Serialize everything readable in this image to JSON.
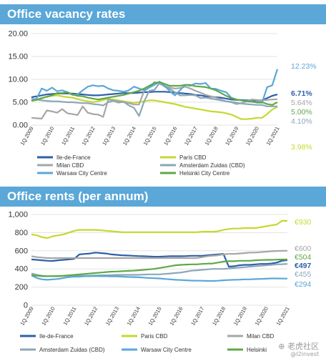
{
  "titles": {
    "vacancy": "Office vacancy rates",
    "rents": "Office rents (per annum)"
  },
  "watermark": {
    "main": "⊕ 老虎社区",
    "sub": "@I2invest"
  },
  "colors": {
    "banner": "#5aa7d8",
    "Ile-de-France": "#2f5fa9",
    "Paris CBD": "#c6d82f",
    "Milan CBD": "#a6a6a6",
    "Amsterdam Zuidas (CBD)": "#8ca7b9",
    "Warsaw City Centre": "#5aa7d8",
    "Helsinki City Centre": "#5fa847",
    "Helsinki": "#5fa847"
  },
  "chart_data": [
    {
      "type": "line",
      "title": "Office vacancy rates",
      "x": [
        "1Q.2009",
        "2Q.2009",
        "3Q.2009",
        "4Q.2009",
        "1Q.2010",
        "2Q.2010",
        "3Q.2010",
        "4Q.2010",
        "1Q.2011",
        "2Q.2011",
        "3Q.2011",
        "4Q.2011",
        "1Q.2012",
        "2Q.2012",
        "3Q.2012",
        "4Q.2012",
        "1Q.2013",
        "2Q.2013",
        "3Q.2013",
        "4Q.2013",
        "1Q.2014",
        "2Q.2014",
        "3Q.2014",
        "4Q.2014",
        "1Q.2015",
        "2Q.2015",
        "3Q.2015",
        "4Q.2015",
        "1Q.2016",
        "2Q.2016",
        "3Q.2016",
        "4Q.2016",
        "1Q.2017",
        "2Q.2017",
        "3Q.2017",
        "4Q.2017",
        "1Q.2018",
        "2Q.2018",
        "3Q.2018",
        "4Q.2018",
        "1Q.2019",
        "2Q.2019",
        "3Q.2019",
        "4Q.2019",
        "1Q.2020",
        "2Q.2020",
        "3Q.2020",
        "4Q.2020",
        "1Q.2021"
      ],
      "x_tick_labels": [
        "1Q.2009",
        "1Q.2010",
        "1Q.2011",
        "1Q.2012",
        "1Q.2013",
        "1Q.2014",
        "1Q.2015",
        "1Q.2016",
        "1Q.2017",
        "1Q.2018",
        "1Q.2019",
        "1Q.2020",
        "1Q.2021"
      ],
      "y_ticks": [
        "0.00",
        "5.00",
        "10.00",
        "15.00",
        "20.00"
      ],
      "ylim": [
        0,
        20
      ],
      "grid": true,
      "legend_position": "bottom",
      "series": [
        {
          "name": "Ile-de-France",
          "values": [
            6.1,
            6.3,
            6.5,
            6.7,
            6.8,
            6.9,
            6.9,
            6.9,
            6.9,
            6.8,
            6.7,
            6.6,
            6.5,
            6.5,
            6.6,
            6.7,
            6.8,
            6.9,
            7.0,
            7.0,
            7.0,
            7.1,
            7.2,
            7.2,
            7.3,
            7.3,
            7.3,
            7.2,
            7.1,
            7.0,
            6.9,
            6.8,
            6.6,
            6.5,
            6.3,
            6.2,
            6.1,
            6.0,
            5.8,
            5.6,
            5.5,
            5.5,
            5.4,
            5.4,
            5.4,
            5.4,
            5.9,
            6.4,
            6.71
          ],
          "end_label": "6.71%"
        },
        {
          "name": "Paris CBD",
          "values": [
            5.6,
            5.5,
            5.8,
            6.2,
            6.4,
            6.5,
            6.3,
            6.1,
            6.0,
            5.7,
            5.4,
            5.2,
            5.0,
            5.2,
            5.5,
            5.7,
            5.6,
            5.4,
            5.2,
            5.0,
            4.9,
            5.0,
            5.2,
            5.4,
            5.4,
            5.2,
            5.0,
            4.8,
            4.6,
            4.3,
            4.0,
            3.8,
            3.6,
            3.4,
            3.2,
            3.0,
            2.9,
            2.8,
            2.6,
            2.3,
            1.8,
            1.3,
            1.3,
            1.4,
            1.6,
            1.6,
            2.4,
            3.4,
            3.98
          ],
          "end_label": "3.98%"
        },
        {
          "name": "Milan CBD",
          "values": [
            1.6,
            1.5,
            1.4,
            3.2,
            3.0,
            2.7,
            3.5,
            2.6,
            2.4,
            2.2,
            4.1,
            2.7,
            2.4,
            2.3,
            1.8,
            5.6,
            5.4,
            5.2,
            5.0,
            4.8,
            4.5,
            4.5,
            7.5,
            8.2,
            9.4,
            9.0,
            8.6,
            8.2,
            8.0,
            8.1,
            8.4,
            8.0,
            7.5,
            7.1,
            6.6,
            6.3,
            6.0,
            5.6,
            5.2,
            5.0,
            4.6,
            4.8,
            5.2,
            5.6,
            5.5,
            5.4,
            5.5,
            5.6,
            5.64
          ],
          "end_label": "5.64%"
        },
        {
          "name": "Amsterdam Zuidas (CBD)",
          "values": [
            5.8,
            5.6,
            5.4,
            5.3,
            5.2,
            5.2,
            5.1,
            5.0,
            5.0,
            4.9,
            4.8,
            4.8,
            4.6,
            4.5,
            4.3,
            5.0,
            5.3,
            4.9,
            5.1,
            4.3,
            3.8,
            2.0,
            5.2,
            7.5,
            7.7,
            9.2,
            8.4,
            7.9,
            7.2,
            6.5,
            6.5,
            6.6,
            6.5,
            5.9,
            6.0,
            5.8,
            5.6,
            5.4,
            5.2,
            5.1,
            4.9,
            4.7,
            4.6,
            4.5,
            4.4,
            4.4,
            4.1,
            4.1,
            4.1
          ],
          "end_label": "4.10%"
        },
        {
          "name": "Warsaw City Centre",
          "values": [
            5.3,
            5.8,
            8.0,
            7.5,
            8.2,
            7.4,
            7.6,
            7.2,
            6.6,
            6.7,
            7.6,
            8.4,
            8.7,
            8.5,
            8.6,
            8.0,
            7.6,
            7.5,
            7.3,
            7.6,
            8.4,
            8.0,
            7.6,
            8.2,
            8.8,
            9.5,
            8.6,
            7.4,
            6.5,
            7.6,
            8.8,
            8.6,
            9.1,
            9.0,
            9.2,
            8.0,
            7.9,
            7.5,
            7.2,
            6.0,
            5.6,
            5.4,
            5.3,
            5.2,
            4.9,
            4.9,
            8.3,
            8.7,
            12.23
          ],
          "end_label": "12.23%"
        },
        {
          "name": "Helsinki City Centre",
          "values": [
            5.3,
            5.5,
            5.9,
            6.2,
            6.5,
            7.0,
            7.0,
            7.2,
            6.7,
            6.4,
            6.3,
            6.0,
            5.8,
            5.6,
            5.8,
            6.0,
            6.2,
            6.4,
            6.6,
            6.9,
            7.2,
            7.5,
            8.0,
            8.6,
            9.2,
            9.4,
            9.0,
            8.6,
            8.6,
            8.6,
            8.8,
            8.8,
            8.5,
            8.4,
            8.3,
            8.0,
            7.6,
            7.0,
            6.4,
            5.9,
            5.6,
            5.4,
            5.2,
            5.1,
            5.0,
            5.0,
            4.6,
            4.4,
            5.0
          ],
          "end_label": "5.00%"
        }
      ],
      "legend": [
        "Ile-de-France",
        "Paris CBD",
        "Milan CBD",
        "Amsterdam Zuidas (CBD)",
        "Warsaw City Centre",
        "Helsinki City Centre"
      ]
    },
    {
      "type": "line",
      "title": "Office rents (per annum)",
      "x": [
        "1Q.2009",
        "2Q.2009",
        "3Q.2009",
        "4Q.2009",
        "1Q.2010",
        "2Q.2010",
        "3Q.2010",
        "4Q.2010",
        "1Q.2011",
        "2Q.2011",
        "3Q.2011",
        "4Q.2011",
        "1Q.2012",
        "2Q.2012",
        "3Q.2012",
        "4Q.2012",
        "1Q.2013",
        "2Q.2013",
        "3Q.2013",
        "4Q.2013",
        "1Q.2014",
        "2Q.2014",
        "3Q.2014",
        "4Q.2014",
        "1Q.2015",
        "2Q.2015",
        "3Q.2015",
        "4Q.2015",
        "1Q.2016",
        "2Q.2016",
        "3Q.2016",
        "4Q.2016",
        "1Q.2017",
        "2Q.2017",
        "3Q.2017",
        "4Q.2017",
        "1Q.2018",
        "2Q.2018",
        "3Q.2018",
        "4Q.2018",
        "1Q.2019",
        "2Q.2019",
        "3Q.2019",
        "4Q.2019",
        "1Q.2020",
        "2Q.2020",
        "3Q.2020",
        "4Q.2020",
        "1Q.2021"
      ],
      "x_tick_labels": [
        "1Q.2009",
        "1Q.2010",
        "1Q.2011",
        "1Q.2012",
        "1Q.2013",
        "1Q.2014",
        "1Q.2015",
        "1Q.2016",
        "1Q.2017",
        "1Q.2018",
        "1Q.2019",
        "1Q.2020",
        "1Q.2021"
      ],
      "y_ticks": [
        "0",
        "200",
        "400",
        "600",
        "800",
        "1,000"
      ],
      "ylim": [
        0,
        1000
      ],
      "grid": true,
      "legend_position": "bottom",
      "series": [
        {
          "name": "Ile-de-France",
          "values": [
            505,
            500,
            495,
            490,
            488,
            495,
            500,
            505,
            510,
            560,
            565,
            570,
            580,
            575,
            570,
            560,
            555,
            550,
            548,
            545,
            542,
            540,
            538,
            535,
            535,
            538,
            540,
            540,
            540,
            542,
            545,
            545,
            545,
            550,
            555,
            560,
            565,
            425,
            430,
            440,
            445,
            445,
            450,
            455,
            455,
            460,
            470,
            490,
            497
          ],
          "end_label": "€497"
        },
        {
          "name": "Paris CBD",
          "values": [
            780,
            770,
            750,
            740,
            760,
            770,
            780,
            800,
            820,
            830,
            830,
            830,
            830,
            825,
            820,
            815,
            810,
            805,
            805,
            805,
            805,
            805,
            805,
            805,
            805,
            805,
            805,
            805,
            805,
            805,
            805,
            805,
            810,
            810,
            810,
            815,
            830,
            840,
            845,
            845,
            850,
            850,
            850,
            860,
            870,
            880,
            890,
            930,
            930
          ],
          "end_label": "€930"
        },
        {
          "name": "Milan CBD",
          "values": [
            540,
            530,
            525,
            520,
            520,
            520,
            520,
            520,
            520,
            520,
            520,
            520,
            520,
            520,
            520,
            520,
            520,
            520,
            520,
            520,
            520,
            520,
            520,
            520,
            520,
            520,
            520,
            520,
            520,
            520,
            520,
            520,
            530,
            540,
            545,
            550,
            560,
            565,
            565,
            570,
            575,
            580,
            580,
            585,
            590,
            595,
            598,
            600,
            600
          ],
          "end_label": "€600"
        },
        {
          "name": "Amsterdam Zuidas (CBD)",
          "values": [
            350,
            335,
            325,
            320,
            320,
            320,
            322,
            325,
            325,
            325,
            325,
            325,
            328,
            330,
            330,
            332,
            335,
            335,
            335,
            335,
            335,
            338,
            340,
            340,
            340,
            345,
            350,
            355,
            360,
            370,
            380,
            385,
            390,
            395,
            400,
            400,
            400,
            405,
            410,
            415,
            420,
            425,
            430,
            435,
            440,
            445,
            450,
            452,
            455
          ],
          "end_label": "€455"
        },
        {
          "name": "Warsaw City Centre",
          "values": [
            330,
            300,
            285,
            280,
            285,
            290,
            300,
            310,
            315,
            315,
            320,
            320,
            322,
            320,
            320,
            318,
            318,
            315,
            312,
            310,
            308,
            305,
            300,
            298,
            295,
            290,
            285,
            280,
            278,
            275,
            272,
            270,
            270,
            268,
            268,
            270,
            275,
            278,
            280,
            282,
            285,
            285,
            288,
            290,
            292,
            295,
            295,
            294,
            294
          ],
          "end_label": "€294"
        },
        {
          "name": "Helsinki",
          "values": [
            330,
            325,
            320,
            320,
            320,
            322,
            325,
            330,
            335,
            340,
            345,
            350,
            355,
            360,
            365,
            370,
            372,
            375,
            378,
            380,
            385,
            390,
            395,
            400,
            410,
            420,
            430,
            440,
            445,
            448,
            450,
            450,
            455,
            458,
            460,
            470,
            480,
            485,
            485,
            490,
            490,
            490,
            495,
            498,
            500,
            500,
            502,
            504,
            504
          ],
          "end_label": "€504"
        }
      ],
      "legend": [
        "Ile-de-France",
        "Paris CBD",
        "Milan CBD",
        "Amsterdam Zuidas (CBD)",
        "Warsaw City Centre",
        "Helsinki"
      ]
    }
  ]
}
